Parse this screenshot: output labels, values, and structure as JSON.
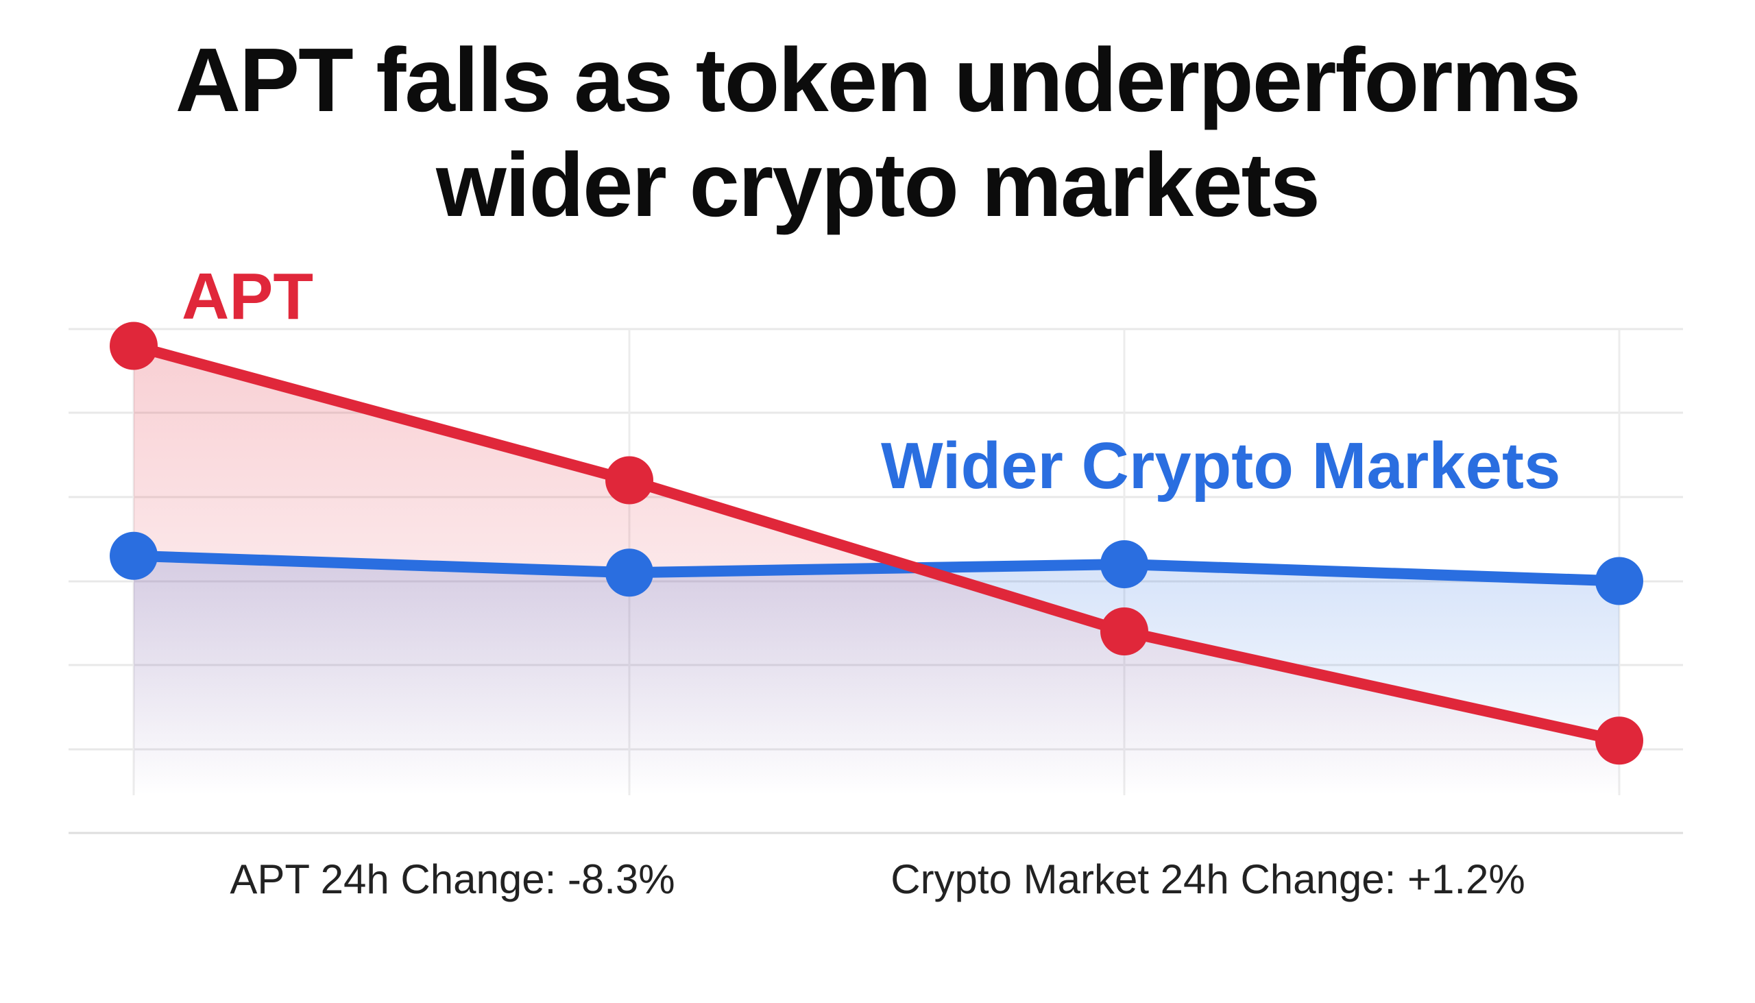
{
  "title": {
    "line1": "APT falls as token underperforms",
    "line2": "wider crypto markets"
  },
  "colors": {
    "apt": "#e0273a",
    "market": "#2a6ee0",
    "grid": "#e6e6e6",
    "text": "#222222"
  },
  "chart_data": {
    "type": "line",
    "title": "APT falls as token underperforms wider crypto markets",
    "xlabel": "",
    "ylabel": "",
    "x": [
      0,
      1,
      2,
      3
    ],
    "ylim": [
      0,
      6
    ],
    "grid": true,
    "legend": "inline labels",
    "series": [
      {
        "name": "APT",
        "color": "#e0273a",
        "values": [
          5.8,
          4.2,
          2.4,
          1.1
        ]
      },
      {
        "name": "Wider Crypto Markets",
        "color": "#2a6ee0",
        "values": [
          3.3,
          3.1,
          3.2,
          3.0
        ]
      }
    ],
    "annotations": [
      "APT 24h Change: -8.3%",
      "Crypto Market 24h Change: +1.2%"
    ]
  }
}
